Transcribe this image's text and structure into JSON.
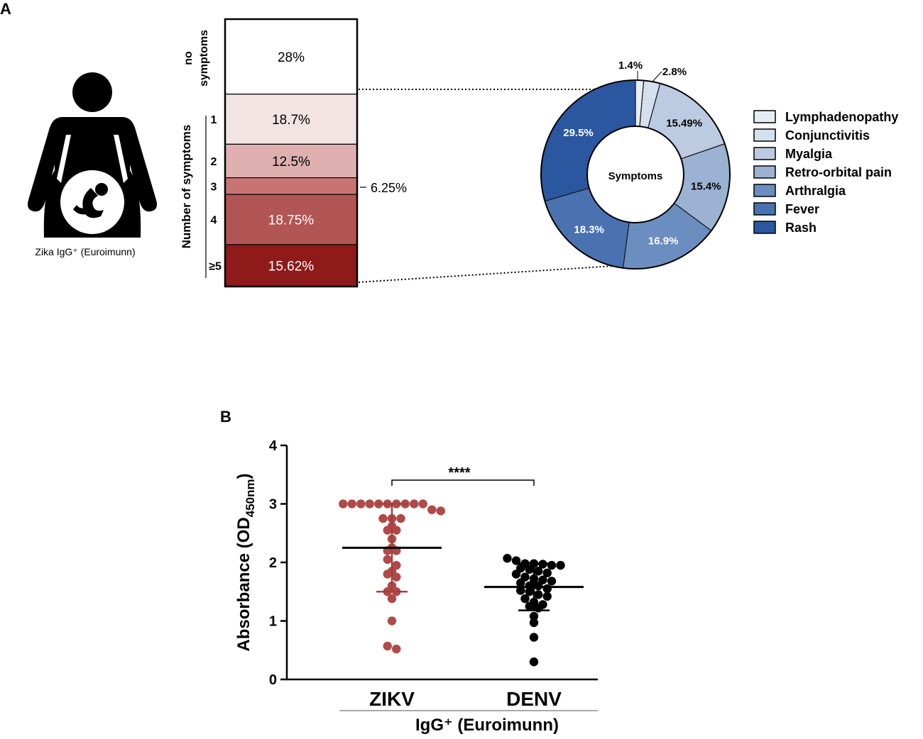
{
  "panel_a": {
    "label": "A",
    "figure_caption": "Zika IgG⁺ (Euroimunn)",
    "no_symptoms_label_1": "no",
    "no_symptoms_label_2": "symptoms",
    "axis_label": "Number of symptoms",
    "callout_label": "6.25%",
    "donut_center_label": "Symptoms",
    "colors": {
      "stack": [
        "#ffffff",
        "#f3e4e4",
        "#dfb0b0",
        "#c97474",
        "#b15555",
        "#8e1a1a"
      ],
      "donut": [
        "#e7edf5",
        "#d5e0ee",
        "#bccbe2",
        "#9cb2d3",
        "#6b8dc0",
        "#4a72b0",
        "#2a579f"
      ]
    }
  },
  "panel_b": {
    "label": "B",
    "sig_label": "****",
    "group_title": "IgG⁺ (Euroimunn)",
    "colors": {
      "zikv": "#b04a48",
      "denv": "#000000"
    }
  },
  "chart_data": [
    {
      "type": "bar",
      "title": "Number of symptoms",
      "categories": [
        "no symptoms",
        "1",
        "2",
        "3",
        "4",
        "≥5"
      ],
      "values": [
        28,
        18.7,
        12.5,
        6.25,
        18.75,
        15.62
      ],
      "labels": [
        "28%",
        "18.7%",
        "12.5%",
        "6.25%",
        "18.75%",
        "15.62%"
      ],
      "stacked": true,
      "ylabel": "Number of symptoms"
    },
    {
      "type": "pie",
      "title": "Symptoms",
      "categories": [
        "Lymphadenopathy",
        "Conjunctivitis",
        "Myalgia",
        "Retro-orbital pain",
        "Arthralgia",
        "Fever",
        "Rash"
      ],
      "values": [
        1.4,
        2.8,
        15.49,
        15.4,
        16.9,
        18.3,
        29.5
      ],
      "labels": [
        "1.4%",
        "2.8%",
        "15.49%",
        "15.4%",
        "16.9%",
        "18.3%",
        "29.5%"
      ],
      "legend": [
        "Lymphadenopathy",
        "Conjunctivitis",
        "Myalgia",
        "Retro-orbital pain",
        "Arthralgia",
        "Fever",
        "Rash"
      ]
    },
    {
      "type": "scatter",
      "title": "",
      "xlabel": "IgG⁺ (Euroimunn)",
      "ylabel": "Absorbance (OD450nm)",
      "ylim": [
        0,
        4
      ],
      "yticks": [
        "0",
        "1",
        "2",
        "3",
        "4"
      ],
      "categories": [
        "ZIKV",
        "DENV"
      ],
      "series": [
        {
          "name": "ZIKV",
          "values": [
            3.0,
            3.0,
            3.0,
            3.0,
            3.0,
            3.0,
            3.0,
            3.0,
            3.0,
            3.0,
            2.9,
            2.88,
            2.75,
            2.75,
            2.75,
            2.62,
            2.55,
            2.55,
            2.4,
            2.25,
            2.2,
            2.2,
            2.05,
            1.95,
            1.85,
            1.8,
            1.75,
            1.6,
            1.5,
            1.5,
            1.38,
            1.0,
            0.57,
            0.52
          ],
          "mean": 2.25,
          "sd_low": 1.5,
          "sd_high": 3.0
        },
        {
          "name": "DENV",
          "values": [
            2.07,
            2.03,
            1.98,
            1.98,
            1.97,
            1.95,
            1.95,
            1.9,
            1.88,
            1.85,
            1.82,
            1.8,
            1.75,
            1.72,
            1.7,
            1.68,
            1.65,
            1.6,
            1.6,
            1.55,
            1.52,
            1.5,
            1.45,
            1.42,
            1.38,
            1.32,
            1.28,
            1.25,
            1.22,
            1.08,
            0.97,
            0.72,
            0.3
          ],
          "mean": 1.58,
          "sd_low": 1.18,
          "sd_high": 1.98
        }
      ],
      "significance": "****"
    }
  ]
}
